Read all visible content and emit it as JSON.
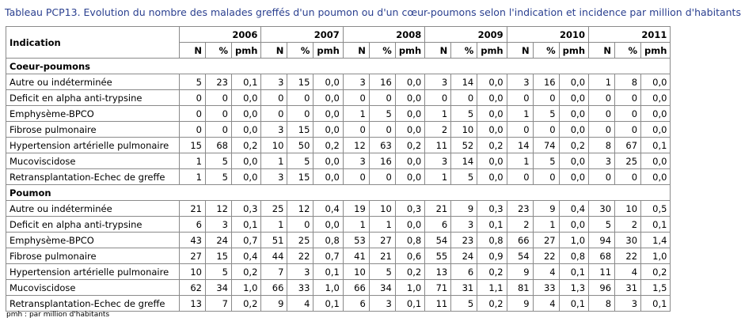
{
  "title": "Tableau PCP13. Evolution du nombre des malades greffés d'un poumon ou d'un cœur-poumons selon l'indication et incidence par million d'habitants",
  "header_label": "Indication",
  "years": [
    "2006",
    "2007",
    "2008",
    "2009",
    "2010",
    "2011"
  ],
  "subheaders": [
    "N",
    "%",
    "pmh"
  ],
  "sections": [
    {
      "name": "Coeur-poumons",
      "rows": [
        {
          "label": "Autre ou indéterminée",
          "values": [
            "5",
            "23",
            "0,1",
            "3",
            "15",
            "0,0",
            "3",
            "16",
            "0,0",
            "3",
            "14",
            "0,0",
            "3",
            "16",
            "0,0",
            "1",
            "8",
            "0,0"
          ]
        },
        {
          "label": "Deficit en alpha anti-trypsine",
          "values": [
            "0",
            "0",
            "0,0",
            "0",
            "0",
            "0,0",
            "0",
            "0",
            "0,0",
            "0",
            "0",
            "0,0",
            "0",
            "0",
            "0,0",
            "0",
            "0",
            "0,0"
          ]
        },
        {
          "label": "Emphysème-BPCO",
          "values": [
            "0",
            "0",
            "0,0",
            "0",
            "0",
            "0,0",
            "1",
            "5",
            "0,0",
            "1",
            "5",
            "0,0",
            "1",
            "5",
            "0,0",
            "0",
            "0",
            "0,0"
          ]
        },
        {
          "label": "Fibrose pulmonaire",
          "values": [
            "0",
            "0",
            "0,0",
            "3",
            "15",
            "0,0",
            "0",
            "0",
            "0,0",
            "2",
            "10",
            "0,0",
            "0",
            "0",
            "0,0",
            "0",
            "0",
            "0,0"
          ]
        },
        {
          "label": "Hypertension artérielle pulmonaire",
          "values": [
            "15",
            "68",
            "0,2",
            "10",
            "50",
            "0,2",
            "12",
            "63",
            "0,2",
            "11",
            "52",
            "0,2",
            "14",
            "74",
            "0,2",
            "8",
            "67",
            "0,1"
          ]
        },
        {
          "label": "Mucoviscidose",
          "values": [
            "1",
            "5",
            "0,0",
            "1",
            "5",
            "0,0",
            "3",
            "16",
            "0,0",
            "3",
            "14",
            "0,0",
            "1",
            "5",
            "0,0",
            "3",
            "25",
            "0,0"
          ]
        },
        {
          "label": "Retransplantation-Echec de greffe",
          "values": [
            "1",
            "5",
            "0,0",
            "3",
            "15",
            "0,0",
            "0",
            "0",
            "0,0",
            "1",
            "5",
            "0,0",
            "0",
            "0",
            "0,0",
            "0",
            "0",
            "0,0"
          ]
        }
      ]
    },
    {
      "name": "Poumon",
      "rows": [
        {
          "label": "Autre ou indéterminée",
          "values": [
            "21",
            "12",
            "0,3",
            "25",
            "12",
            "0,4",
            "19",
            "10",
            "0,3",
            "21",
            "9",
            "0,3",
            "23",
            "9",
            "0,4",
            "30",
            "10",
            "0,5"
          ]
        },
        {
          "label": "Deficit en alpha anti-trypsine",
          "values": [
            "6",
            "3",
            "0,1",
            "1",
            "0",
            "0,0",
            "1",
            "1",
            "0,0",
            "6",
            "3",
            "0,1",
            "2",
            "1",
            "0,0",
            "5",
            "2",
            "0,1"
          ]
        },
        {
          "label": "Emphysème-BPCO",
          "values": [
            "43",
            "24",
            "0,7",
            "51",
            "25",
            "0,8",
            "53",
            "27",
            "0,8",
            "54",
            "23",
            "0,8",
            "66",
            "27",
            "1,0",
            "94",
            "30",
            "1,4"
          ]
        },
        {
          "label": "Fibrose pulmonaire",
          "values": [
            "27",
            "15",
            "0,4",
            "44",
            "22",
            "0,7",
            "41",
            "21",
            "0,6",
            "55",
            "24",
            "0,9",
            "54",
            "22",
            "0,8",
            "68",
            "22",
            "1,0"
          ]
        },
        {
          "label": "Hypertension artérielle pulmonaire",
          "values": [
            "10",
            "5",
            "0,2",
            "7",
            "3",
            "0,1",
            "10",
            "5",
            "0,2",
            "13",
            "6",
            "0,2",
            "9",
            "4",
            "0,1",
            "11",
            "4",
            "0,2"
          ]
        },
        {
          "label": "Mucoviscidose",
          "values": [
            "62",
            "34",
            "1,0",
            "66",
            "33",
            "1,0",
            "66",
            "34",
            "1,0",
            "71",
            "31",
            "1,1",
            "81",
            "33",
            "1,3",
            "96",
            "31",
            "1,5"
          ]
        },
        {
          "label": "Retransplantation-Echec de greffe",
          "values": [
            "13",
            "7",
            "0,2",
            "9",
            "4",
            "0,1",
            "6",
            "3",
            "0,1",
            "11",
            "5",
            "0,2",
            "9",
            "4",
            "0,1",
            "8",
            "3",
            "0,1"
          ]
        }
      ]
    }
  ],
  "footnote": "pmh : par million d'habitants"
}
